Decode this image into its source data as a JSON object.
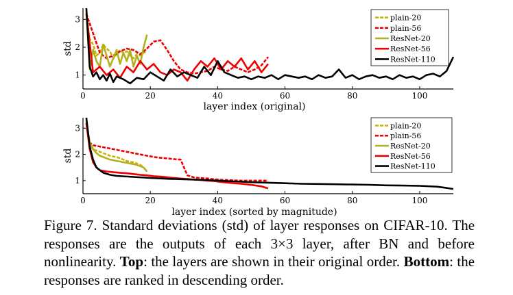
{
  "figure": {
    "caption": {
      "label": "Figure 7.",
      "text_1": "Standard deviations (std) of layer responses on CIFAR-10. The responses are the outputs of each 3×3 layer, after BN and before nonlinearity.",
      "top_label": "Top",
      "text_2": ": the layers are shown in their original order.",
      "bottom_label": "Bottom",
      "text_3": ": the responses are ranked in descending order."
    }
  },
  "chart_data": [
    {
      "type": "line",
      "panel": "top",
      "xlabel": "layer index (original)",
      "ylabel": "std",
      "xlim": [
        0,
        110
      ],
      "ylim": [
        0.5,
        3.4
      ],
      "xticks": [
        0,
        20,
        40,
        60,
        80,
        100
      ],
      "yticks": [
        1,
        2,
        3
      ],
      "grid": false,
      "legend": "top-right",
      "series": [
        {
          "name": "plain-20",
          "color": "#c8b400",
          "dash": "dashed",
          "x": [
            1,
            2,
            3,
            4,
            5,
            6,
            7,
            8,
            9,
            10,
            11,
            12,
            13,
            14,
            15,
            16,
            17,
            18,
            19
          ],
          "y": [
            3.2,
            2.3,
            2.1,
            1.7,
            1.8,
            2.1,
            1.95,
            1.85,
            1.6,
            1.75,
            1.9,
            1.8,
            1.85,
            1.7,
            1.6,
            1.75,
            1.7,
            1.8,
            1.85
          ]
        },
        {
          "name": "plain-56",
          "color": "#ee0000",
          "dash": "dashed",
          "x": [
            1,
            3,
            5,
            7,
            9,
            11,
            13,
            15,
            17,
            19,
            21,
            23,
            25,
            27,
            29,
            31,
            33,
            35,
            37,
            39,
            41,
            43,
            45,
            47,
            49,
            51,
            53,
            55
          ],
          "y": [
            3.2,
            2.5,
            1.8,
            1.6,
            1.7,
            1.85,
            1.95,
            1.9,
            1.75,
            1.95,
            2.2,
            2.25,
            1.9,
            1.5,
            1.2,
            1.1,
            1.05,
            1.1,
            1.15,
            1.3,
            1.2,
            1.15,
            1.3,
            1.2,
            1.1,
            1.2,
            1.35,
            1.65
          ]
        },
        {
          "name": "ResNet-20",
          "color": "#b0b020",
          "dash": "solid",
          "x": [
            1,
            2,
            3,
            4,
            5,
            6,
            7,
            8,
            9,
            10,
            11,
            12,
            13,
            14,
            15,
            16,
            17,
            18,
            19
          ],
          "y": [
            3.3,
            1.2,
            1.9,
            1.5,
            1.3,
            2.1,
            1.7,
            1.3,
            1.6,
            1.9,
            1.4,
            1.8,
            1.5,
            1.9,
            1.3,
            1.7,
            1.4,
            2.0,
            2.45
          ]
        },
        {
          "name": "ResNet-56",
          "color": "#ee0000",
          "dash": "solid",
          "x": [
            1,
            3,
            5,
            7,
            9,
            11,
            13,
            15,
            17,
            19,
            21,
            23,
            25,
            27,
            29,
            31,
            33,
            35,
            37,
            39,
            41,
            43,
            45,
            47,
            49,
            51,
            53,
            55
          ],
          "y": [
            3.2,
            1.1,
            1.3,
            1.0,
            1.2,
            0.9,
            1.3,
            1.1,
            1.5,
            1.2,
            1.4,
            1.1,
            1.0,
            1.2,
            1.1,
            0.8,
            1.2,
            1.5,
            1.3,
            1.6,
            1.2,
            1.5,
            1.3,
            1.6,
            1.2,
            1.5,
            1.1,
            1.4
          ]
        },
        {
          "name": "ResNet-110",
          "color": "#000000",
          "dash": "solid",
          "x": [
            1,
            2,
            3,
            4,
            5,
            6,
            7,
            8,
            9,
            10,
            12,
            14,
            16,
            18,
            20,
            22,
            24,
            26,
            28,
            30,
            32,
            34,
            36,
            38,
            40,
            42,
            44,
            46,
            48,
            50,
            52,
            54,
            56,
            58,
            60,
            62,
            64,
            66,
            68,
            70,
            72,
            74,
            76,
            78,
            80,
            82,
            84,
            86,
            88,
            90,
            92,
            94,
            96,
            98,
            100,
            102,
            104,
            106,
            108,
            110
          ],
          "y": [
            3.4,
            1.3,
            0.95,
            1.1,
            0.85,
            1.0,
            0.8,
            1.05,
            0.75,
            0.95,
            0.85,
            0.7,
            0.9,
            0.85,
            1.1,
            0.95,
            0.8,
            1.2,
            0.95,
            1.1,
            1.0,
            0.9,
            1.3,
            1.0,
            1.5,
            1.1,
            1.0,
            0.9,
            0.95,
            0.85,
            0.95,
            0.9,
            1.0,
            0.85,
            1.0,
            0.95,
            0.9,
            0.95,
            0.85,
            1.0,
            0.9,
            0.95,
            1.2,
            0.9,
            1.0,
            0.85,
            0.95,
            1.0,
            0.9,
            0.95,
            0.85,
            1.0,
            0.9,
            0.95,
            0.85,
            1.0,
            1.05,
            0.95,
            1.15,
            1.65
          ]
        }
      ]
    },
    {
      "type": "line",
      "panel": "bottom",
      "xlabel": "layer index (sorted by magnitude)",
      "ylabel": "std",
      "xlim": [
        0,
        110
      ],
      "ylim": [
        0.5,
        3.4
      ],
      "xticks": [
        0,
        20,
        40,
        60,
        80,
        100
      ],
      "yticks": [
        1,
        2,
        3
      ],
      "grid": false,
      "legend": "top-right",
      "series": [
        {
          "name": "plain-20",
          "color": "#c8b400",
          "dash": "dashed",
          "x": [
            1,
            2,
            3,
            4,
            5,
            6,
            7,
            8,
            9,
            10,
            11,
            12,
            13,
            14,
            15,
            16,
            17,
            18,
            19
          ],
          "y": [
            3.2,
            2.35,
            2.2,
            2.15,
            2.1,
            2.05,
            2.0,
            1.95,
            1.92,
            1.9,
            1.85,
            1.8,
            1.75,
            1.72,
            1.7,
            1.65,
            1.6,
            1.5,
            1.35
          ]
        },
        {
          "name": "plain-56",
          "color": "#ee0000",
          "dash": "dashed",
          "x": [
            1,
            2,
            3,
            5,
            7,
            9,
            11,
            13,
            15,
            17,
            19,
            21,
            23,
            25,
            27,
            29,
            31,
            33,
            35,
            37,
            39,
            41,
            43,
            45,
            47,
            49,
            51,
            53,
            55
          ],
          "y": [
            3.2,
            2.45,
            2.35,
            2.3,
            2.25,
            2.2,
            2.15,
            2.1,
            2.05,
            2.0,
            1.95,
            1.9,
            1.87,
            1.85,
            1.82,
            1.8,
            1.2,
            1.12,
            1.1,
            1.08,
            1.05,
            1.03,
            1.02,
            1.01,
            1.0,
            1.0,
            1.0,
            1.0,
            1.0
          ]
        },
        {
          "name": "ResNet-20",
          "color": "#b0b020",
          "dash": "solid",
          "x": [
            1,
            2,
            3,
            4,
            5,
            6,
            7,
            8,
            9,
            10,
            11,
            12,
            13,
            14,
            15,
            16,
            17,
            18,
            19
          ],
          "y": [
            3.3,
            2.45,
            2.2,
            2.05,
            1.95,
            1.9,
            1.85,
            1.8,
            1.78,
            1.75,
            1.73,
            1.7,
            1.68,
            1.65,
            1.63,
            1.6,
            1.55,
            1.5,
            1.35
          ]
        },
        {
          "name": "ResNet-56",
          "color": "#ee0000",
          "dash": "solid",
          "x": [
            1,
            2,
            3,
            4,
            5,
            7,
            9,
            11,
            13,
            15,
            17,
            19,
            21,
            23,
            25,
            27,
            29,
            31,
            33,
            35,
            37,
            39,
            41,
            43,
            45,
            47,
            49,
            51,
            53,
            55
          ],
          "y": [
            3.2,
            2.2,
            1.7,
            1.5,
            1.4,
            1.35,
            1.32,
            1.3,
            1.28,
            1.25,
            1.22,
            1.2,
            1.17,
            1.15,
            1.13,
            1.1,
            1.08,
            1.06,
            1.04,
            1.02,
            1.0,
            0.98,
            0.95,
            0.92,
            0.9,
            0.88,
            0.85,
            0.82,
            0.78,
            0.7
          ]
        },
        {
          "name": "ResNet-110",
          "color": "#000000",
          "dash": "solid",
          "x": [
            1,
            2,
            3,
            4,
            5,
            6,
            8,
            10,
            15,
            20,
            25,
            30,
            35,
            40,
            45,
            50,
            55,
            60,
            65,
            70,
            75,
            80,
            85,
            90,
            95,
            100,
            105,
            108,
            110
          ],
          "y": [
            3.4,
            2.3,
            1.8,
            1.5,
            1.4,
            1.3,
            1.22,
            1.18,
            1.14,
            1.1,
            1.07,
            1.05,
            1.03,
            1.0,
            0.97,
            0.94,
            0.92,
            0.9,
            0.88,
            0.87,
            0.86,
            0.85,
            0.84,
            0.82,
            0.81,
            0.8,
            0.77,
            0.72,
            0.68
          ]
        }
      ]
    }
  ]
}
